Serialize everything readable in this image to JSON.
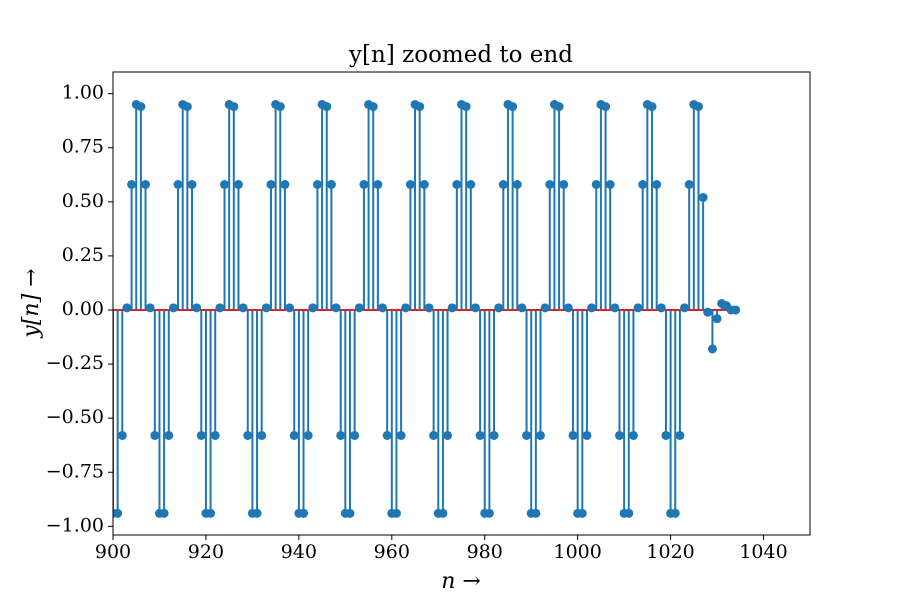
{
  "chart_data": {
    "type": "stem",
    "title": "y[n] zoomed to end",
    "xlabel": "n →",
    "ylabel": "y[n] →",
    "color": "#1f77b4",
    "baseline_color": "#d62728",
    "x": [
      900,
      901,
      902,
      903,
      904,
      905,
      906,
      907,
      908,
      909,
      910,
      911,
      912,
      913,
      914,
      915,
      916,
      917,
      918,
      919,
      920,
      921,
      922,
      923,
      924,
      925,
      926,
      927,
      928,
      929,
      930,
      931,
      932,
      933,
      934,
      935,
      936,
      937,
      938,
      939,
      940,
      941,
      942,
      943,
      944,
      945,
      946,
      947,
      948,
      949,
      950,
      951,
      952,
      953,
      954,
      955,
      956,
      957,
      958,
      959,
      960,
      961,
      962,
      963,
      964,
      965,
      966,
      967,
      968,
      969,
      970,
      971,
      972,
      973,
      974,
      975,
      976,
      977,
      978,
      979,
      980,
      981,
      982,
      983,
      984,
      985,
      986,
      987,
      988,
      989,
      990,
      991,
      992,
      993,
      994,
      995,
      996,
      997,
      998,
      999,
      1000,
      1001,
      1002,
      1003,
      1004,
      1005,
      1006,
      1007,
      1008,
      1009,
      1010,
      1011,
      1012,
      1013,
      1014,
      1015,
      1016,
      1017,
      1018,
      1019,
      1020,
      1021,
      1022,
      1023,
      1024,
      1025,
      1026,
      1027,
      1028,
      1029,
      1030,
      1031,
      1032,
      1033,
      1034
    ],
    "values": [
      -0.94,
      -0.94,
      -0.58,
      0.01,
      0.58,
      0.95,
      0.94,
      0.58,
      0.01,
      -0.58,
      -0.94,
      -0.94,
      -0.58,
      0.01,
      0.58,
      0.95,
      0.94,
      0.58,
      0.01,
      -0.58,
      -0.94,
      -0.94,
      -0.58,
      0.01,
      0.58,
      0.95,
      0.94,
      0.58,
      0.01,
      -0.58,
      -0.94,
      -0.94,
      -0.58,
      0.01,
      0.58,
      0.95,
      0.94,
      0.58,
      0.01,
      -0.58,
      -0.94,
      -0.94,
      -0.58,
      0.01,
      0.58,
      0.95,
      0.94,
      0.58,
      0.01,
      -0.58,
      -0.94,
      -0.94,
      -0.58,
      0.01,
      0.58,
      0.95,
      0.94,
      0.58,
      0.01,
      -0.58,
      -0.94,
      -0.94,
      -0.58,
      0.01,
      0.58,
      0.95,
      0.94,
      0.58,
      0.01,
      -0.58,
      -0.94,
      -0.94,
      -0.58,
      0.01,
      0.58,
      0.95,
      0.94,
      0.58,
      0.01,
      -0.58,
      -0.94,
      -0.94,
      -0.58,
      0.01,
      0.58,
      0.95,
      0.94,
      0.58,
      0.01,
      -0.58,
      -0.94,
      -0.94,
      -0.58,
      0.01,
      0.58,
      0.95,
      0.94,
      0.58,
      0.01,
      -0.58,
      -0.94,
      -0.94,
      -0.58,
      0.01,
      0.58,
      0.95,
      0.94,
      0.58,
      0.01,
      -0.58,
      -0.94,
      -0.94,
      -0.58,
      0.01,
      0.58,
      0.95,
      0.94,
      0.58,
      0.01,
      -0.58,
      -0.94,
      -0.94,
      -0.58,
      0.01,
      0.58,
      0.95,
      0.94,
      0.52,
      -0.01,
      -0.18,
      -0.04,
      0.03,
      0.02,
      0.0,
      0.0
    ],
    "xlim": [
      900,
      1050
    ],
    "xticks": [
      900,
      920,
      940,
      960,
      980,
      1000,
      1020,
      1040
    ],
    "ylim": [
      -1.04,
      1.1
    ],
    "yticks": [
      {
        "value": 1,
        "label": "1.00"
      },
      {
        "value": 0.75,
        "label": "0.75"
      },
      {
        "value": 0.5,
        "label": "0.50"
      },
      {
        "value": 0.25,
        "label": "0.25"
      },
      {
        "value": 0,
        "label": "0.00"
      },
      {
        "value": -0.25,
        "label": "−0.25"
      },
      {
        "value": -0.5,
        "label": "−0.50"
      },
      {
        "value": -0.75,
        "label": "−0.75"
      },
      {
        "value": -1,
        "label": "−1.00"
      }
    ]
  }
}
